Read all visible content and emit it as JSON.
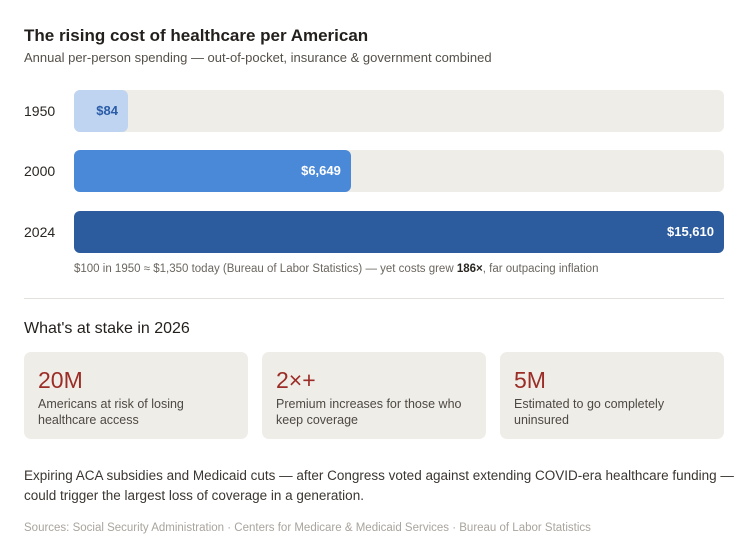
{
  "title": "The rising cost of healthcare per American",
  "subtitle": "Annual per-person spending — out-of-pocket, insurance & government combined",
  "chart_data": {
    "type": "bar",
    "orientation": "horizontal",
    "categories": [
      "1950",
      "2000",
      "2024"
    ],
    "values": [
      84,
      6649,
      15610
    ],
    "value_labels": [
      "$84",
      "$6,649",
      "$15,610"
    ],
    "colors": [
      "#bed4f0",
      "#4a89d8",
      "#2d5c9e"
    ],
    "label_colors": [
      "#2a5ca8",
      "#ffffff",
      "#ffffff"
    ],
    "xlim": [
      0,
      15610
    ],
    "grid": false
  },
  "note": {
    "pre": "$100 in 1950 ≈ $1,350 today (Bureau of Labor Statistics) — yet costs grew ",
    "bold": "186×",
    "post": ", far outpacing inflation"
  },
  "stakes": {
    "heading": "What's at stake in 2026",
    "cards": [
      {
        "value": "20M",
        "desc": "Americans at risk of losing healthcare access"
      },
      {
        "value": "2×+",
        "desc": "Premium increases for those who keep coverage"
      },
      {
        "value": "5M",
        "desc": "Estimated to go completely uninsured"
      }
    ]
  },
  "paragraph": "Expiring ACA subsidies and Medicaid cuts — after Congress voted against extending COVID-era healthcare funding — could trigger the largest loss of coverage in a generation.",
  "sources": "Sources: Social Security Administration · Centers for Medicare & Medicaid Services · Bureau of Labor Statistics"
}
